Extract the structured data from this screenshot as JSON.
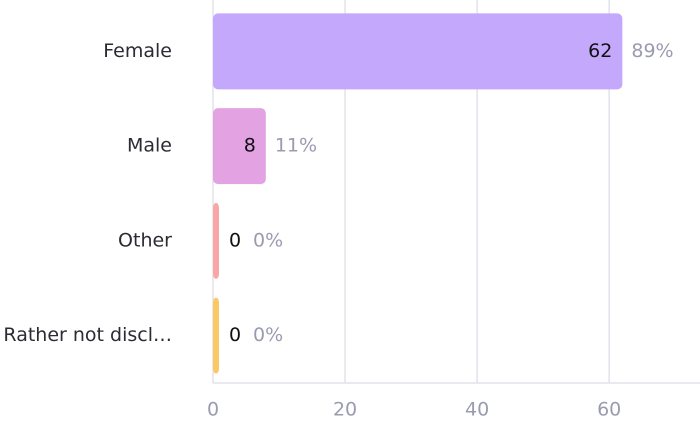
{
  "chart_data": {
    "type": "bar",
    "orientation": "horizontal",
    "categories": [
      "Female",
      "Male",
      "Other",
      "Rather not discl…"
    ],
    "values": [
      62,
      8,
      0,
      0
    ],
    "percentage_labels": [
      "89%",
      "11%",
      "0%",
      "0%"
    ],
    "colors": [
      "#c4a8fc",
      "#e3a3e3",
      "#fba6a6",
      "#fcc865"
    ],
    "xlim": [
      0,
      73
    ],
    "xticks": [
      0,
      20,
      40,
      60
    ],
    "grid": true
  }
}
